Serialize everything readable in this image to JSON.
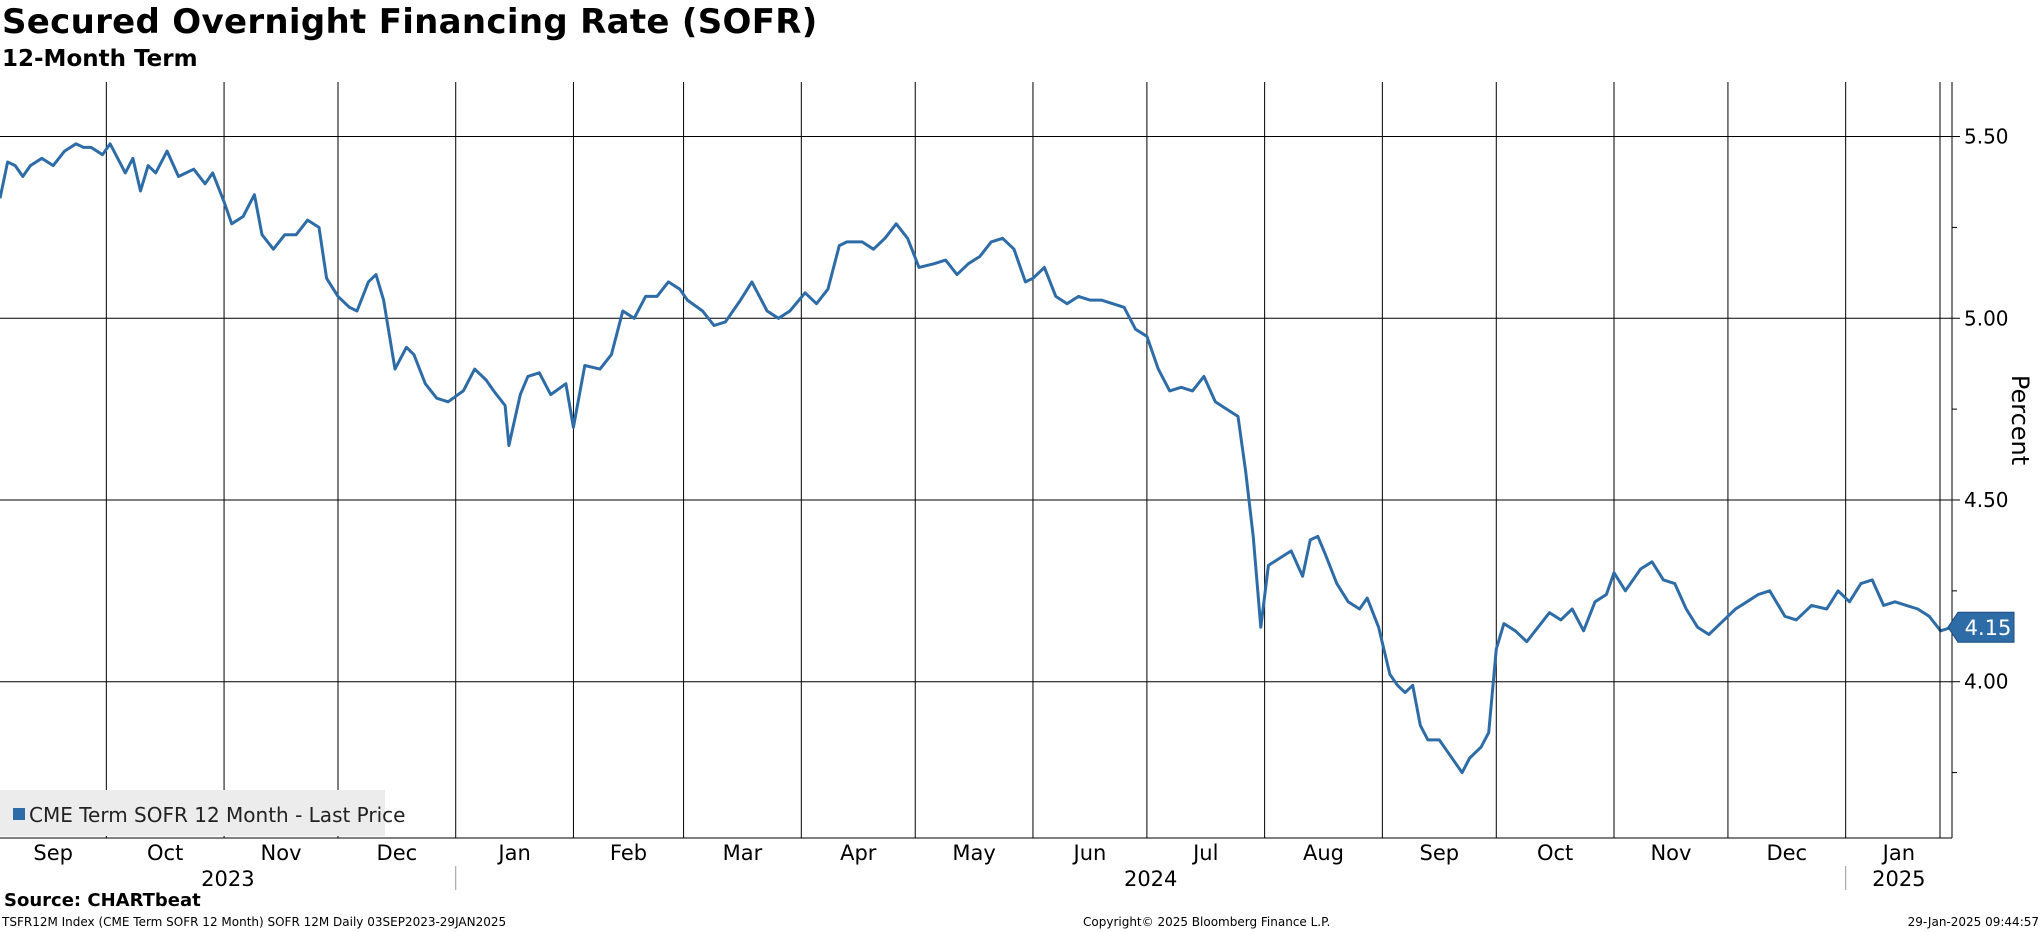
{
  "header": {
    "title": "Secured Overnight Financing Rate (SOFR)",
    "subtitle": "12-Month Term"
  },
  "footer": {
    "source": "Source: CHARTbeat",
    "ticker": "TSFR12M Index (CME Term SOFR 12 Month) SOFR 12M  Daily 03SEP2023-29JAN2025",
    "copyright": "Copyright© 2025 Bloomberg Finance L.P.",
    "timestamp": "29-Jan-2025 09:44:57"
  },
  "colors": {
    "line": "#2e6ca8",
    "grid": "#000000",
    "legend_bg": "#ececec",
    "label_text": "#ffffff"
  },
  "chart_data": {
    "type": "line",
    "title": "Secured Overnight Financing Rate (SOFR)",
    "subtitle": "12-Month Term",
    "ylabel": "Percent",
    "ylim": [
      3.57,
      5.65
    ],
    "yticks": [
      4.0,
      4.5,
      5.0,
      5.5
    ],
    "ytick_labels": [
      "4.00",
      "4.50",
      "5.00",
      "5.50"
    ],
    "xlim": [
      "2023-09-03",
      "2025-01-29"
    ],
    "month_ticks": [
      {
        "label": "Sep",
        "date": "2023-09-01"
      },
      {
        "label": "Oct",
        "date": "2023-10-01"
      },
      {
        "label": "Nov",
        "date": "2023-11-01"
      },
      {
        "label": "Dec",
        "date": "2023-12-01"
      },
      {
        "label": "Jan",
        "date": "2024-01-01"
      },
      {
        "label": "Feb",
        "date": "2024-02-01"
      },
      {
        "label": "Mar",
        "date": "2024-03-01"
      },
      {
        "label": "Apr",
        "date": "2024-04-01"
      },
      {
        "label": "May",
        "date": "2024-05-01"
      },
      {
        "label": "Jun",
        "date": "2024-06-01"
      },
      {
        "label": "Jul",
        "date": "2024-07-01"
      },
      {
        "label": "Aug",
        "date": "2024-08-01"
      },
      {
        "label": "Sep",
        "date": "2024-09-01"
      },
      {
        "label": "Oct",
        "date": "2024-10-01"
      },
      {
        "label": "Nov",
        "date": "2024-11-01"
      },
      {
        "label": "Dec",
        "date": "2024-12-01"
      },
      {
        "label": "Jan",
        "date": "2025-01-01"
      }
    ],
    "year_ticks": [
      {
        "label": "2023",
        "date": "2023-09-01",
        "end": "2024-01-01"
      },
      {
        "label": "2024",
        "date": "2024-01-01",
        "end": "2025-01-01"
      },
      {
        "label": "2025",
        "date": "2025-01-01",
        "end": "2025-01-29"
      }
    ],
    "grid": true,
    "legend": {
      "position": "bottom-left",
      "entries": [
        "CME Term SOFR 12 Month - Last Price"
      ]
    },
    "last_value_label": "4.15",
    "series": [
      {
        "name": "CME Term SOFR 12 Month - Last Price",
        "points": [
          [
            "2023-09-03",
            5.33
          ],
          [
            "2023-09-05",
            5.43
          ],
          [
            "2023-09-07",
            5.42
          ],
          [
            "2023-09-09",
            5.39
          ],
          [
            "2023-09-11",
            5.42
          ],
          [
            "2023-09-14",
            5.44
          ],
          [
            "2023-09-17",
            5.42
          ],
          [
            "2023-09-20",
            5.46
          ],
          [
            "2023-09-23",
            5.48
          ],
          [
            "2023-09-25",
            5.47
          ],
          [
            "2023-09-27",
            5.47
          ],
          [
            "2023-09-30",
            5.45
          ],
          [
            "2023-10-02",
            5.48
          ],
          [
            "2023-10-04",
            5.44
          ],
          [
            "2023-10-06",
            5.4
          ],
          [
            "2023-10-08",
            5.44
          ],
          [
            "2023-10-10",
            5.35
          ],
          [
            "2023-10-12",
            5.42
          ],
          [
            "2023-10-14",
            5.4
          ],
          [
            "2023-10-17",
            5.46
          ],
          [
            "2023-10-20",
            5.39
          ],
          [
            "2023-10-24",
            5.41
          ],
          [
            "2023-10-27",
            5.37
          ],
          [
            "2023-10-29",
            5.4
          ],
          [
            "2023-11-01",
            5.32
          ],
          [
            "2023-11-03",
            5.26
          ],
          [
            "2023-11-06",
            5.28
          ],
          [
            "2023-11-09",
            5.34
          ],
          [
            "2023-11-11",
            5.23
          ],
          [
            "2023-11-14",
            5.19
          ],
          [
            "2023-11-17",
            5.23
          ],
          [
            "2023-11-20",
            5.23
          ],
          [
            "2023-11-23",
            5.27
          ],
          [
            "2023-11-26",
            5.25
          ],
          [
            "2023-11-28",
            5.11
          ],
          [
            "2023-12-01",
            5.06
          ],
          [
            "2023-12-04",
            5.03
          ],
          [
            "2023-12-06",
            5.02
          ],
          [
            "2023-12-09",
            5.1
          ],
          [
            "2023-12-11",
            5.12
          ],
          [
            "2023-12-13",
            5.05
          ],
          [
            "2023-12-16",
            4.86
          ],
          [
            "2023-12-19",
            4.92
          ],
          [
            "2023-12-21",
            4.9
          ],
          [
            "2023-12-24",
            4.82
          ],
          [
            "2023-12-27",
            4.78
          ],
          [
            "2023-12-30",
            4.77
          ],
          [
            "2024-01-03",
            4.8
          ],
          [
            "2024-01-06",
            4.86
          ],
          [
            "2024-01-09",
            4.83
          ],
          [
            "2024-01-11",
            4.8
          ],
          [
            "2024-01-14",
            4.76
          ],
          [
            "2024-01-15",
            4.65
          ],
          [
            "2024-01-18",
            4.79
          ],
          [
            "2024-01-20",
            4.84
          ],
          [
            "2024-01-23",
            4.85
          ],
          [
            "2024-01-26",
            4.79
          ],
          [
            "2024-01-30",
            4.82
          ],
          [
            "2024-02-01",
            4.7
          ],
          [
            "2024-02-04",
            4.87
          ],
          [
            "2024-02-08",
            4.86
          ],
          [
            "2024-02-11",
            4.9
          ],
          [
            "2024-02-14",
            5.02
          ],
          [
            "2024-02-17",
            5.0
          ],
          [
            "2024-02-20",
            5.06
          ],
          [
            "2024-02-23",
            5.06
          ],
          [
            "2024-02-26",
            5.1
          ],
          [
            "2024-02-29",
            5.08
          ],
          [
            "2024-03-02",
            5.05
          ],
          [
            "2024-03-06",
            5.02
          ],
          [
            "2024-03-09",
            4.98
          ],
          [
            "2024-03-12",
            4.99
          ],
          [
            "2024-03-16",
            5.05
          ],
          [
            "2024-03-19",
            5.1
          ],
          [
            "2024-03-23",
            5.02
          ],
          [
            "2024-03-26",
            5.0
          ],
          [
            "2024-03-29",
            5.02
          ],
          [
            "2024-04-02",
            5.07
          ],
          [
            "2024-04-05",
            5.04
          ],
          [
            "2024-04-08",
            5.08
          ],
          [
            "2024-04-11",
            5.2
          ],
          [
            "2024-04-13",
            5.21
          ],
          [
            "2024-04-17",
            5.21
          ],
          [
            "2024-04-20",
            5.19
          ],
          [
            "2024-04-23",
            5.22
          ],
          [
            "2024-04-26",
            5.26
          ],
          [
            "2024-04-29",
            5.22
          ],
          [
            "2024-05-02",
            5.14
          ],
          [
            "2024-05-06",
            5.15
          ],
          [
            "2024-05-09",
            5.16
          ],
          [
            "2024-05-12",
            5.12
          ],
          [
            "2024-05-15",
            5.15
          ],
          [
            "2024-05-18",
            5.17
          ],
          [
            "2024-05-21",
            5.21
          ],
          [
            "2024-05-24",
            5.22
          ],
          [
            "2024-05-27",
            5.19
          ],
          [
            "2024-05-30",
            5.1
          ],
          [
            "2024-06-01",
            5.11
          ],
          [
            "2024-06-04",
            5.14
          ],
          [
            "2024-06-07",
            5.06
          ],
          [
            "2024-06-10",
            5.04
          ],
          [
            "2024-06-13",
            5.06
          ],
          [
            "2024-06-16",
            5.05
          ],
          [
            "2024-06-19",
            5.05
          ],
          [
            "2024-06-22",
            5.04
          ],
          [
            "2024-06-25",
            5.03
          ],
          [
            "2024-06-28",
            4.97
          ],
          [
            "2024-07-01",
            4.95
          ],
          [
            "2024-07-04",
            4.86
          ],
          [
            "2024-07-07",
            4.8
          ],
          [
            "2024-07-10",
            4.81
          ],
          [
            "2024-07-13",
            4.8
          ],
          [
            "2024-07-16",
            4.84
          ],
          [
            "2024-07-19",
            4.77
          ],
          [
            "2024-07-22",
            4.75
          ],
          [
            "2024-07-25",
            4.73
          ],
          [
            "2024-07-27",
            4.58
          ],
          [
            "2024-07-29",
            4.4
          ],
          [
            "2024-07-31",
            4.15
          ],
          [
            "2024-08-02",
            4.32
          ],
          [
            "2024-08-05",
            4.34
          ],
          [
            "2024-08-08",
            4.36
          ],
          [
            "2024-08-11",
            4.29
          ],
          [
            "2024-08-13",
            4.39
          ],
          [
            "2024-08-15",
            4.4
          ],
          [
            "2024-08-17",
            4.35
          ],
          [
            "2024-08-20",
            4.27
          ],
          [
            "2024-08-23",
            4.22
          ],
          [
            "2024-08-26",
            4.2
          ],
          [
            "2024-08-28",
            4.23
          ],
          [
            "2024-08-31",
            4.15
          ],
          [
            "2024-09-03",
            4.02
          ],
          [
            "2024-09-05",
            3.99
          ],
          [
            "2024-09-07",
            3.97
          ],
          [
            "2024-09-09",
            3.99
          ],
          [
            "2024-09-11",
            3.88
          ],
          [
            "2024-09-13",
            3.84
          ],
          [
            "2024-09-16",
            3.84
          ],
          [
            "2024-09-18",
            3.81
          ],
          [
            "2024-09-20",
            3.78
          ],
          [
            "2024-09-22",
            3.75
          ],
          [
            "2024-09-24",
            3.79
          ],
          [
            "2024-09-27",
            3.82
          ],
          [
            "2024-09-29",
            3.86
          ],
          [
            "2024-10-01",
            4.09
          ],
          [
            "2024-10-03",
            4.16
          ],
          [
            "2024-10-06",
            4.14
          ],
          [
            "2024-10-09",
            4.11
          ],
          [
            "2024-10-12",
            4.15
          ],
          [
            "2024-10-15",
            4.19
          ],
          [
            "2024-10-18",
            4.17
          ],
          [
            "2024-10-21",
            4.2
          ],
          [
            "2024-10-24",
            4.14
          ],
          [
            "2024-10-27",
            4.22
          ],
          [
            "2024-10-30",
            4.24
          ],
          [
            "2024-11-01",
            4.3
          ],
          [
            "2024-11-04",
            4.25
          ],
          [
            "2024-11-08",
            4.31
          ],
          [
            "2024-11-11",
            4.33
          ],
          [
            "2024-11-14",
            4.28
          ],
          [
            "2024-11-17",
            4.27
          ],
          [
            "2024-11-20",
            4.2
          ],
          [
            "2024-11-23",
            4.15
          ],
          [
            "2024-11-26",
            4.13
          ],
          [
            "2024-11-29",
            4.16
          ],
          [
            "2024-12-03",
            4.2
          ],
          [
            "2024-12-06",
            4.22
          ],
          [
            "2024-12-09",
            4.24
          ],
          [
            "2024-12-12",
            4.25
          ],
          [
            "2024-12-16",
            4.18
          ],
          [
            "2024-12-19",
            4.17
          ],
          [
            "2024-12-23",
            4.21
          ],
          [
            "2024-12-27",
            4.2
          ],
          [
            "2024-12-30",
            4.25
          ],
          [
            "2025-01-02",
            4.22
          ],
          [
            "2025-01-05",
            4.27
          ],
          [
            "2025-01-08",
            4.28
          ],
          [
            "2025-01-11",
            4.21
          ],
          [
            "2025-01-14",
            4.22
          ],
          [
            "2025-01-17",
            4.21
          ],
          [
            "2025-01-20",
            4.2
          ],
          [
            "2025-01-23",
            4.18
          ],
          [
            "2025-01-26",
            4.14
          ],
          [
            "2025-01-29",
            4.15
          ]
        ]
      }
    ]
  }
}
